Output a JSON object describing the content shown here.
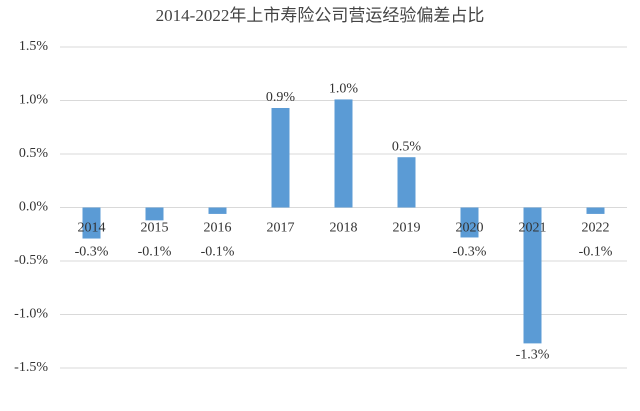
{
  "chart_data": {
    "type": "bar",
    "title": "2014-2022年上市寿险公司营运经验偏差占比",
    "categories": [
      "2014",
      "2015",
      "2016",
      "2017",
      "2018",
      "2019",
      "2020",
      "2021",
      "2022"
    ],
    "values": [
      -0.29,
      -0.12,
      -0.06,
      0.93,
      1.01,
      0.47,
      -0.28,
      -1.27,
      -0.06
    ],
    "value_labels": [
      "-0.3%",
      "-0.1%",
      "-0.1%",
      "0.9%",
      "1.0%",
      "0.5%",
      "-0.3%",
      "-1.3%",
      "-0.1%"
    ],
    "color": "#5b9bd5",
    "ylim": [
      -1.5,
      1.5
    ],
    "yticks": [
      {
        "value": -1.5,
        "label": "-1.5%"
      },
      {
        "value": -1.0,
        "label": "-1.0%"
      },
      {
        "value": -0.5,
        "label": "-0.5%"
      },
      {
        "value": 0,
        "label": "0.0%"
      },
      {
        "value": 0.5,
        "label": "0.5%"
      },
      {
        "value": 1.0,
        "label": "1.0%"
      },
      {
        "value": 1.5,
        "label": "1.5%"
      }
    ],
    "grid": true
  }
}
